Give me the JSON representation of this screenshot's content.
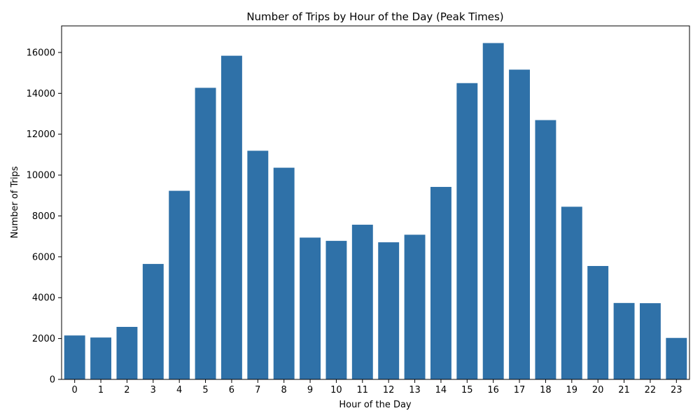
{
  "chart_data": {
    "type": "bar",
    "title": "Number of Trips by Hour of the Day (Peak Times)",
    "xlabel": "Hour of the Day",
    "ylabel": "Number of Trips",
    "categories": [
      "0",
      "1",
      "2",
      "3",
      "4",
      "5",
      "6",
      "7",
      "8",
      "9",
      "10",
      "11",
      "12",
      "13",
      "14",
      "15",
      "16",
      "17",
      "18",
      "19",
      "20",
      "21",
      "22",
      "23"
    ],
    "values": [
      2150,
      2050,
      2570,
      5650,
      9230,
      14270,
      15840,
      11190,
      10360,
      6940,
      6780,
      7570,
      6710,
      7080,
      9420,
      14500,
      16460,
      15160,
      12690,
      8450,
      5550,
      3740,
      3730,
      2030
    ],
    "ylim": [
      0,
      17300
    ],
    "yticks": [
      0,
      2000,
      4000,
      6000,
      8000,
      10000,
      12000,
      14000,
      16000
    ],
    "ytick_labels": [
      "0",
      "2000",
      "4000",
      "6000",
      "8000",
      "10000",
      "12000",
      "14000",
      "16000"
    ],
    "grid": false,
    "bar_color": "#2f71a8"
  }
}
